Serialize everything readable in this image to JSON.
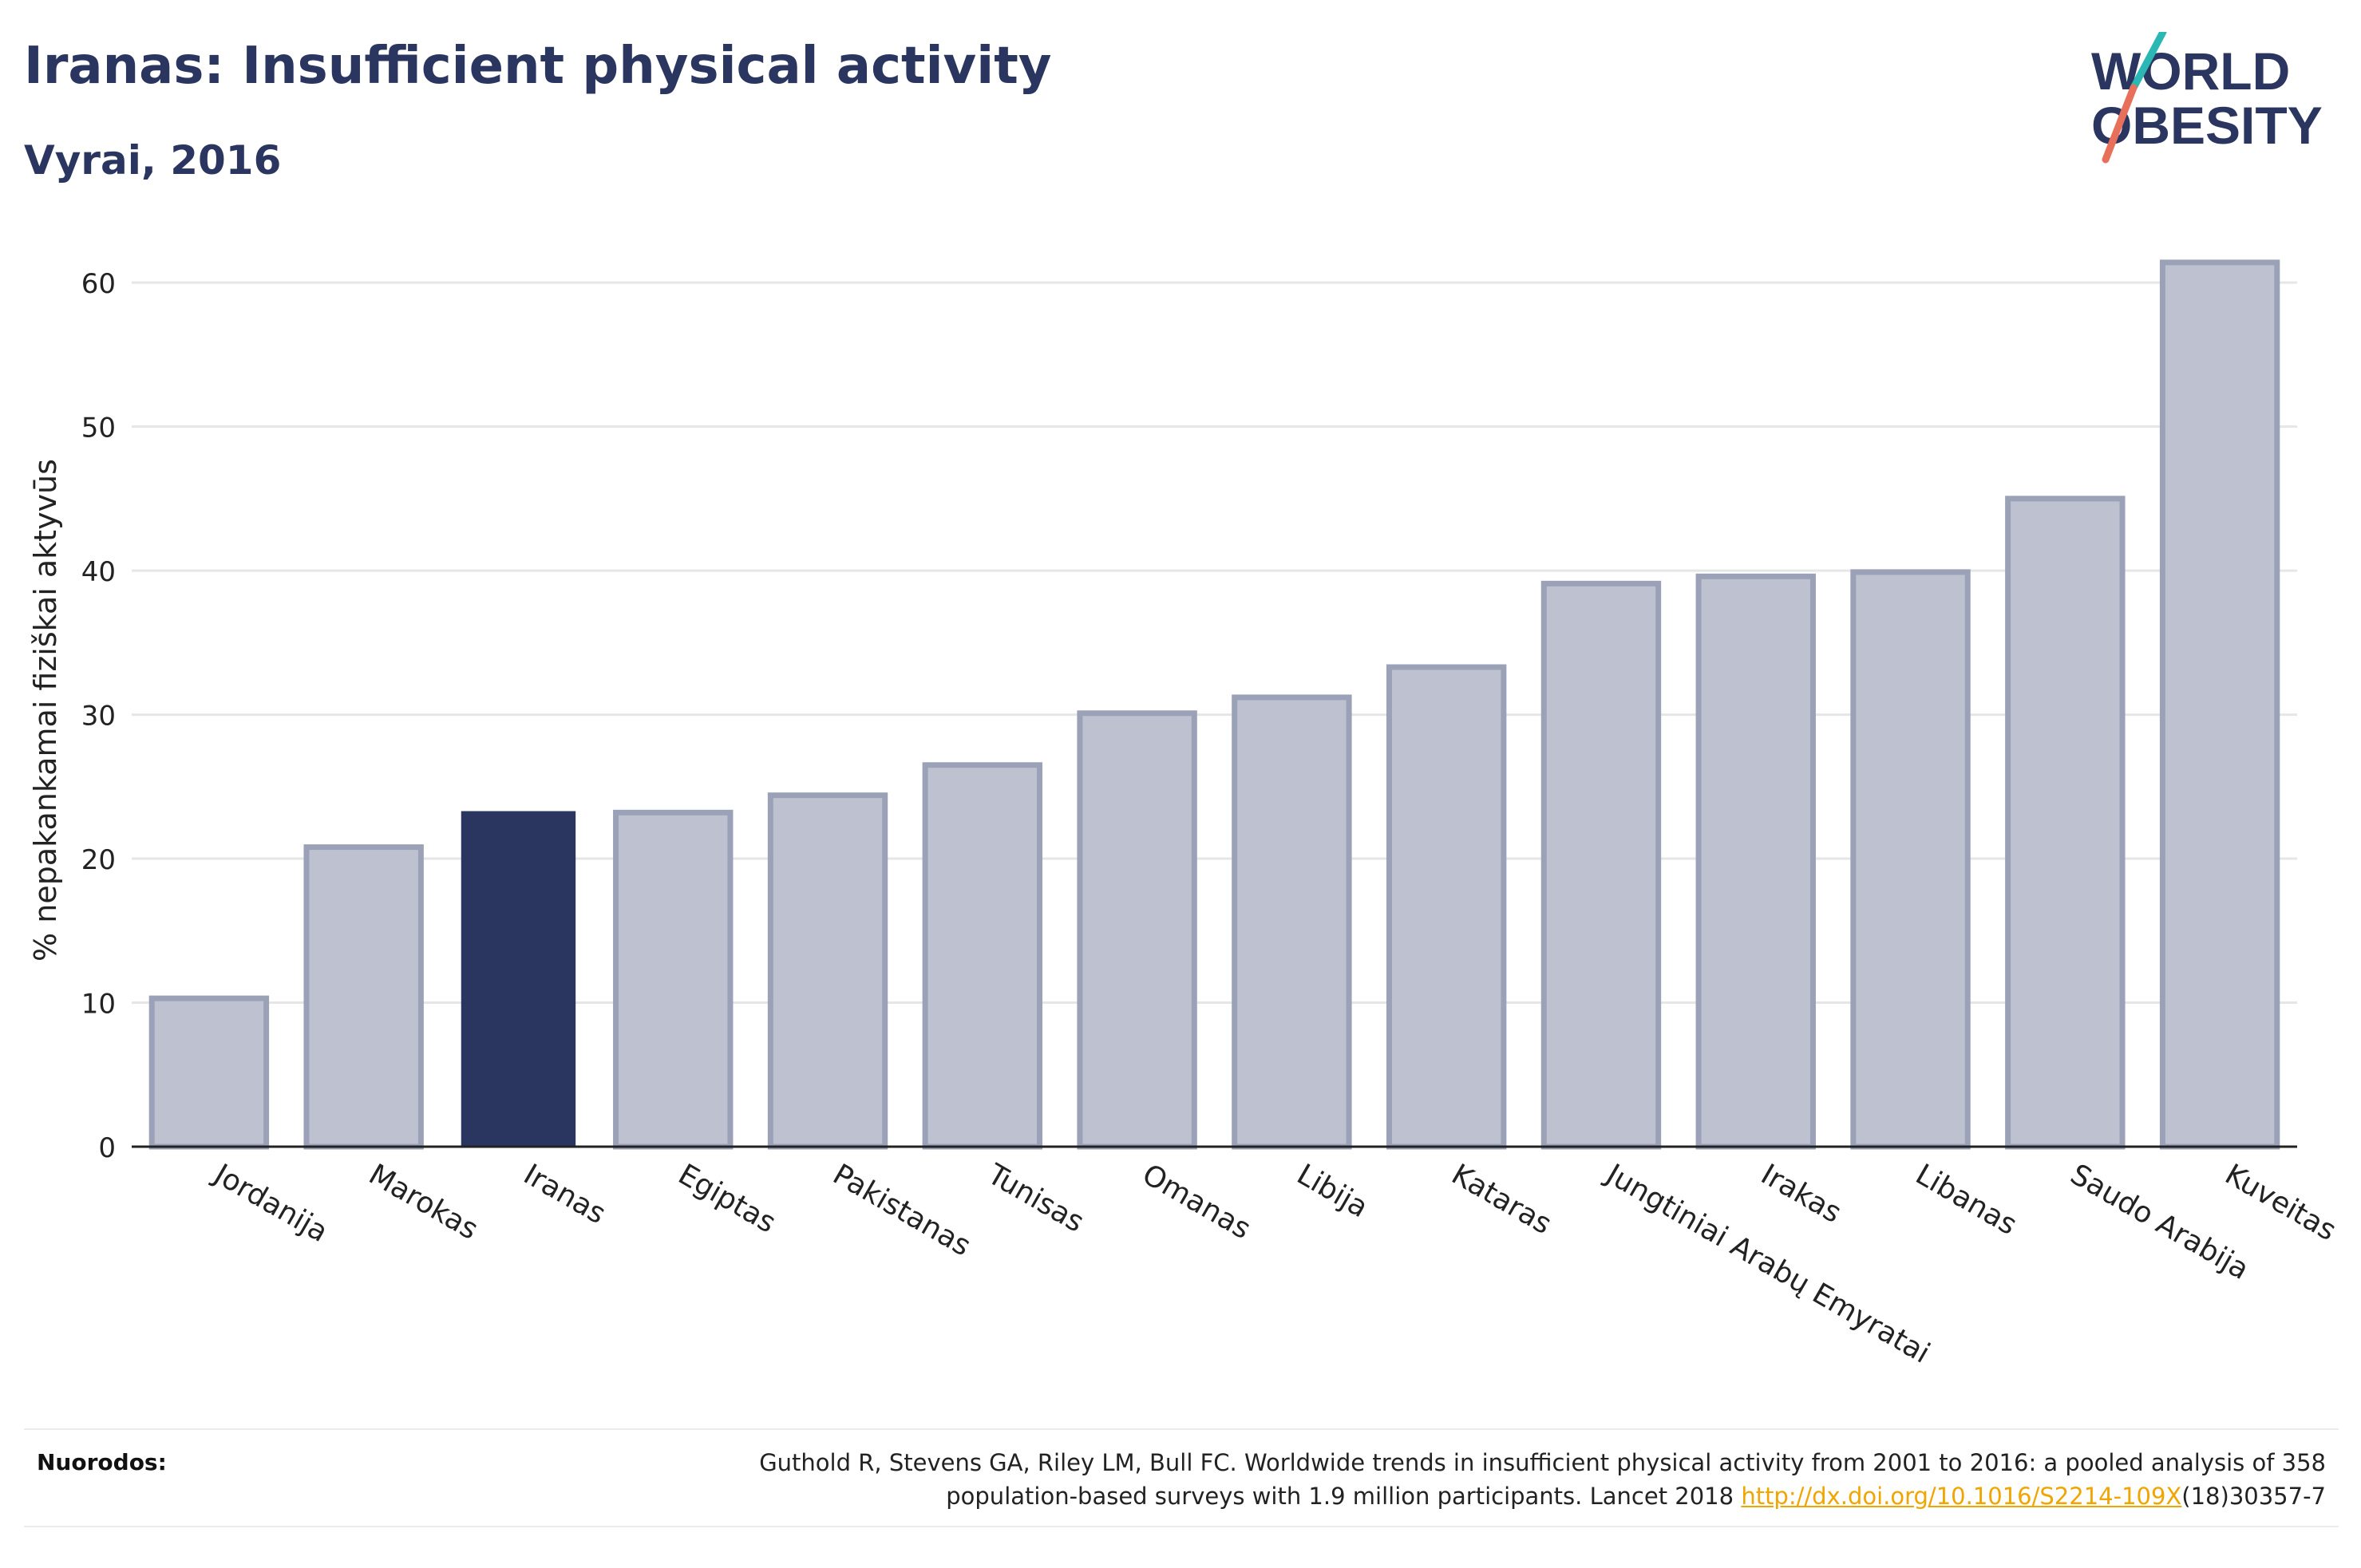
{
  "header": {
    "title": "Iranas: Insufficient physical activity",
    "subtitle": "Vyrai, 2016"
  },
  "logo": {
    "line1": "WORLD",
    "line2": "OBESITY",
    "colors": {
      "text": "#2a3560",
      "slash_top": "#2bb7b3",
      "slash_bottom": "#e8705a"
    }
  },
  "chart_data": {
    "type": "bar",
    "ylabel": "% nepakankamai fiziškai aktyvūs",
    "xlabel": "",
    "ylim": [
      0,
      63
    ],
    "yticks": [
      0,
      10,
      20,
      30,
      40,
      50,
      60
    ],
    "grid": true,
    "categories": [
      "Jordanija",
      "Marokas",
      "Iranas",
      "Egiptas",
      "Pakistanas",
      "Tunisas",
      "Omanas",
      "Libija",
      "Kataras",
      "Jungtiniai Arabų Emyratai",
      "Irakas",
      "Libanas",
      "Saudo Arabija",
      "Kuveitas"
    ],
    "values": [
      10.3,
      20.8,
      23.3,
      23.2,
      24.4,
      26.5,
      30.1,
      31.2,
      33.3,
      39.1,
      39.6,
      39.9,
      45.0,
      61.4
    ],
    "highlight": "Iranas",
    "colors": {
      "bar": "#bec2d0",
      "bar_border": "#9ba2b8",
      "highlight": "#2a3560",
      "grid": "#e6e6e6",
      "axis": "#222222"
    }
  },
  "footer": {
    "label": "Nuorodos:",
    "citation_part1": "Guthold R, Stevens GA, Riley LM, Bull FC. Worldwide trends in insufficient physical activity from 2001 to 2016: a pooled analysis of 358",
    "citation_part2": "population-based surveys with 1.9 million participants. Lancet 2018 ",
    "link_text": "http://dx.doi.org/10.1016/S2214-109X",
    "citation_part3": "(18)30357-7"
  }
}
